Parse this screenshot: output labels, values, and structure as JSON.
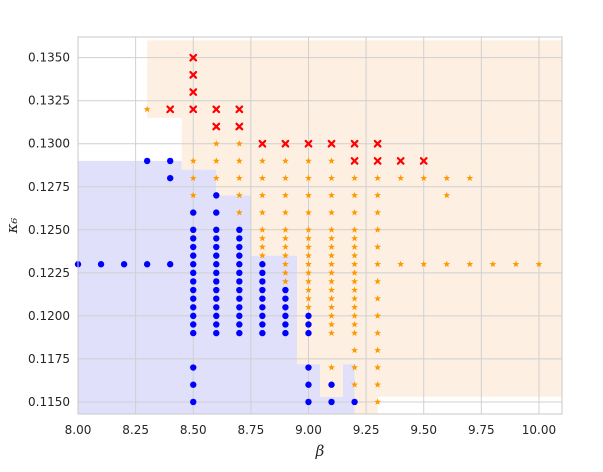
{
  "chart_data": {
    "type": "scatter",
    "xlabel": "β",
    "ylabel": "κ₆",
    "xlim": [
      8.0,
      10.1
    ],
    "ylim": [
      0.1143,
      0.1362
    ],
    "x_ticks": [
      "8.00",
      "8.25",
      "8.50",
      "8.75",
      "9.00",
      "9.25",
      "9.50",
      "9.75",
      "10.00"
    ],
    "x_tick_values": [
      8.0,
      8.25,
      8.5,
      8.75,
      9.0,
      9.25,
      9.5,
      9.75,
      10.0
    ],
    "y_ticks": [
      "0.1150",
      "0.1175",
      "0.1200",
      "0.1225",
      "0.1250",
      "0.1275",
      "0.1300",
      "0.1325",
      "0.1350"
    ],
    "y_tick_values": [
      0.115,
      0.1175,
      0.12,
      0.1225,
      0.125,
      0.1275,
      0.13,
      0.1325,
      0.135
    ],
    "grid": true,
    "colors": {
      "blue_region": "#e0e0fb",
      "orange_region": "#fdf0e2",
      "blue_points": "#0000ff",
      "orange_points": "#ff9900",
      "red_points": "#ff0000",
      "grid": "#d0d0d0",
      "border": "#c8c8c8"
    },
    "regions": [
      {
        "color_key": "blue_region",
        "polygon": [
          [
            8.0,
            0.114
          ],
          [
            9.2,
            0.114
          ],
          [
            9.2,
            0.1172
          ],
          [
            9.15,
            0.1172
          ],
          [
            9.15,
            0.1153
          ],
          [
            9.05,
            0.1153
          ],
          [
            9.05,
            0.1172
          ],
          [
            8.95,
            0.1172
          ],
          [
            8.95,
            0.1235
          ],
          [
            8.75,
            0.1235
          ],
          [
            8.75,
            0.127
          ],
          [
            8.6,
            0.127
          ],
          [
            8.6,
            0.1285
          ],
          [
            8.45,
            0.1285
          ],
          [
            8.45,
            0.129
          ],
          [
            8.0,
            0.129
          ]
        ]
      },
      {
        "color_key": "orange_region",
        "polygon": [
          [
            8.3,
            0.136
          ],
          [
            10.1,
            0.136
          ],
          [
            10.1,
            0.1153
          ],
          [
            9.3,
            0.1153
          ],
          [
            9.3,
            0.114
          ],
          [
            9.2,
            0.114
          ],
          [
            9.2,
            0.1172
          ],
          [
            9.15,
            0.1172
          ],
          [
            9.15,
            0.1153
          ],
          [
            9.05,
            0.1153
          ],
          [
            9.05,
            0.1172
          ],
          [
            8.95,
            0.1172
          ],
          [
            8.95,
            0.1235
          ],
          [
            8.75,
            0.1235
          ],
          [
            8.75,
            0.127
          ],
          [
            8.6,
            0.127
          ],
          [
            8.6,
            0.1285
          ],
          [
            8.45,
            0.1285
          ],
          [
            8.45,
            0.1315
          ],
          [
            8.3,
            0.1315
          ]
        ]
      }
    ],
    "series": [
      {
        "marker": "circle",
        "color_key": "blue_points",
        "points": [
          [
            8.0,
            0.123
          ],
          [
            8.1,
            0.123
          ],
          [
            8.2,
            0.123
          ],
          [
            8.3,
            0.123
          ],
          [
            8.4,
            0.123
          ],
          [
            8.3,
            0.129
          ],
          [
            8.4,
            0.129
          ],
          [
            8.4,
            0.128
          ],
          [
            8.5,
            0.115
          ],
          [
            8.5,
            0.116
          ],
          [
            8.5,
            0.117
          ],
          [
            8.5,
            0.119
          ],
          [
            8.5,
            0.1195
          ],
          [
            8.5,
            0.12
          ],
          [
            8.5,
            0.1205
          ],
          [
            8.5,
            0.121
          ],
          [
            8.5,
            0.1215
          ],
          [
            8.5,
            0.122
          ],
          [
            8.5,
            0.1225
          ],
          [
            8.5,
            0.123
          ],
          [
            8.5,
            0.1235
          ],
          [
            8.5,
            0.124
          ],
          [
            8.5,
            0.1245
          ],
          [
            8.5,
            0.125
          ],
          [
            8.5,
            0.126
          ],
          [
            8.6,
            0.119
          ],
          [
            8.6,
            0.1195
          ],
          [
            8.6,
            0.12
          ],
          [
            8.6,
            0.1205
          ],
          [
            8.6,
            0.121
          ],
          [
            8.6,
            0.1215
          ],
          [
            8.6,
            0.122
          ],
          [
            8.6,
            0.1225
          ],
          [
            8.6,
            0.123
          ],
          [
            8.6,
            0.1235
          ],
          [
            8.6,
            0.124
          ],
          [
            8.6,
            0.1245
          ],
          [
            8.6,
            0.125
          ],
          [
            8.6,
            0.126
          ],
          [
            8.6,
            0.127
          ],
          [
            8.7,
            0.119
          ],
          [
            8.7,
            0.1195
          ],
          [
            8.7,
            0.12
          ],
          [
            8.7,
            0.1205
          ],
          [
            8.7,
            0.121
          ],
          [
            8.7,
            0.1215
          ],
          [
            8.7,
            0.122
          ],
          [
            8.7,
            0.1225
          ],
          [
            8.7,
            0.123
          ],
          [
            8.7,
            0.1235
          ],
          [
            8.7,
            0.124
          ],
          [
            8.7,
            0.1245
          ],
          [
            8.7,
            0.125
          ],
          [
            8.8,
            0.119
          ],
          [
            8.8,
            0.1195
          ],
          [
            8.8,
            0.12
          ],
          [
            8.8,
            0.1205
          ],
          [
            8.8,
            0.121
          ],
          [
            8.8,
            0.1215
          ],
          [
            8.8,
            0.122
          ],
          [
            8.8,
            0.1225
          ],
          [
            8.8,
            0.123
          ],
          [
            8.9,
            0.119
          ],
          [
            8.9,
            0.1195
          ],
          [
            8.9,
            0.12
          ],
          [
            8.9,
            0.1205
          ],
          [
            8.9,
            0.121
          ],
          [
            8.9,
            0.1215
          ],
          [
            9.0,
            0.115
          ],
          [
            9.0,
            0.116
          ],
          [
            9.0,
            0.117
          ],
          [
            9.0,
            0.119
          ],
          [
            9.0,
            0.1195
          ],
          [
            9.0,
            0.12
          ],
          [
            9.1,
            0.115
          ],
          [
            9.1,
            0.116
          ],
          [
            9.2,
            0.115
          ]
        ]
      },
      {
        "marker": "star",
        "color_key": "orange_points",
        "points": [
          [
            8.3,
            0.132
          ],
          [
            8.5,
            0.129
          ],
          [
            8.5,
            0.128
          ],
          [
            8.5,
            0.127
          ],
          [
            8.6,
            0.13
          ],
          [
            8.6,
            0.129
          ],
          [
            8.6,
            0.128
          ],
          [
            8.7,
            0.13
          ],
          [
            8.7,
            0.129
          ],
          [
            8.7,
            0.128
          ],
          [
            8.7,
            0.127
          ],
          [
            8.7,
            0.126
          ],
          [
            8.8,
            0.129
          ],
          [
            8.8,
            0.128
          ],
          [
            8.8,
            0.127
          ],
          [
            8.8,
            0.126
          ],
          [
            8.8,
            0.125
          ],
          [
            8.8,
            0.1245
          ],
          [
            8.8,
            0.124
          ],
          [
            8.8,
            0.1235
          ],
          [
            8.9,
            0.129
          ],
          [
            8.9,
            0.128
          ],
          [
            8.9,
            0.127
          ],
          [
            8.9,
            0.126
          ],
          [
            8.9,
            0.125
          ],
          [
            8.9,
            0.1245
          ],
          [
            8.9,
            0.124
          ],
          [
            8.9,
            0.1235
          ],
          [
            8.9,
            0.123
          ],
          [
            8.9,
            0.1225
          ],
          [
            8.9,
            0.122
          ],
          [
            9.0,
            0.129
          ],
          [
            9.0,
            0.128
          ],
          [
            9.0,
            0.127
          ],
          [
            9.0,
            0.126
          ],
          [
            9.0,
            0.125
          ],
          [
            9.0,
            0.1245
          ],
          [
            9.0,
            0.124
          ],
          [
            9.0,
            0.1235
          ],
          [
            9.0,
            0.123
          ],
          [
            9.0,
            0.1225
          ],
          [
            9.0,
            0.122
          ],
          [
            9.0,
            0.1215
          ],
          [
            9.0,
            0.121
          ],
          [
            9.0,
            0.1205
          ],
          [
            9.1,
            0.129
          ],
          [
            9.1,
            0.128
          ],
          [
            9.1,
            0.127
          ],
          [
            9.1,
            0.126
          ],
          [
            9.1,
            0.125
          ],
          [
            9.1,
            0.1245
          ],
          [
            9.1,
            0.124
          ],
          [
            9.1,
            0.1235
          ],
          [
            9.1,
            0.123
          ],
          [
            9.1,
            0.1225
          ],
          [
            9.1,
            0.122
          ],
          [
            9.1,
            0.1215
          ],
          [
            9.1,
            0.121
          ],
          [
            9.1,
            0.1205
          ],
          [
            9.1,
            0.12
          ],
          [
            9.1,
            0.1195
          ],
          [
            9.1,
            0.119
          ],
          [
            9.1,
            0.117
          ],
          [
            9.2,
            0.128
          ],
          [
            9.2,
            0.127
          ],
          [
            9.2,
            0.126
          ],
          [
            9.2,
            0.125
          ],
          [
            9.2,
            0.1245
          ],
          [
            9.2,
            0.124
          ],
          [
            9.2,
            0.1235
          ],
          [
            9.2,
            0.123
          ],
          [
            9.2,
            0.1225
          ],
          [
            9.2,
            0.122
          ],
          [
            9.2,
            0.1215
          ],
          [
            9.2,
            0.121
          ],
          [
            9.2,
            0.1205
          ],
          [
            9.2,
            0.12
          ],
          [
            9.2,
            0.1195
          ],
          [
            9.2,
            0.119
          ],
          [
            9.2,
            0.118
          ],
          [
            9.2,
            0.117
          ],
          [
            9.2,
            0.116
          ],
          [
            9.3,
            0.128
          ],
          [
            9.3,
            0.127
          ],
          [
            9.3,
            0.126
          ],
          [
            9.3,
            0.125
          ],
          [
            9.3,
            0.124
          ],
          [
            9.3,
            0.123
          ],
          [
            9.3,
            0.122
          ],
          [
            9.3,
            0.121
          ],
          [
            9.3,
            0.12
          ],
          [
            9.3,
            0.119
          ],
          [
            9.3,
            0.118
          ],
          [
            9.3,
            0.117
          ],
          [
            9.3,
            0.116
          ],
          [
            9.3,
            0.115
          ],
          [
            9.4,
            0.128
          ],
          [
            9.4,
            0.123
          ],
          [
            9.5,
            0.128
          ],
          [
            9.5,
            0.123
          ],
          [
            9.6,
            0.128
          ],
          [
            9.6,
            0.127
          ],
          [
            9.6,
            0.123
          ],
          [
            9.7,
            0.128
          ],
          [
            9.7,
            0.123
          ],
          [
            9.8,
            0.123
          ],
          [
            9.9,
            0.123
          ],
          [
            10.0,
            0.123
          ]
        ]
      },
      {
        "marker": "x",
        "color_key": "red_points",
        "points": [
          [
            8.5,
            0.135
          ],
          [
            8.5,
            0.134
          ],
          [
            8.5,
            0.133
          ],
          [
            8.5,
            0.132
          ],
          [
            8.4,
            0.132
          ],
          [
            8.6,
            0.132
          ],
          [
            8.6,
            0.131
          ],
          [
            8.7,
            0.132
          ],
          [
            8.7,
            0.131
          ],
          [
            8.8,
            0.13
          ],
          [
            8.9,
            0.13
          ],
          [
            9.0,
            0.13
          ],
          [
            9.1,
            0.13
          ],
          [
            9.2,
            0.13
          ],
          [
            9.2,
            0.129
          ],
          [
            9.3,
            0.13
          ],
          [
            9.3,
            0.129
          ],
          [
            9.4,
            0.129
          ],
          [
            9.5,
            0.129
          ]
        ]
      }
    ]
  }
}
